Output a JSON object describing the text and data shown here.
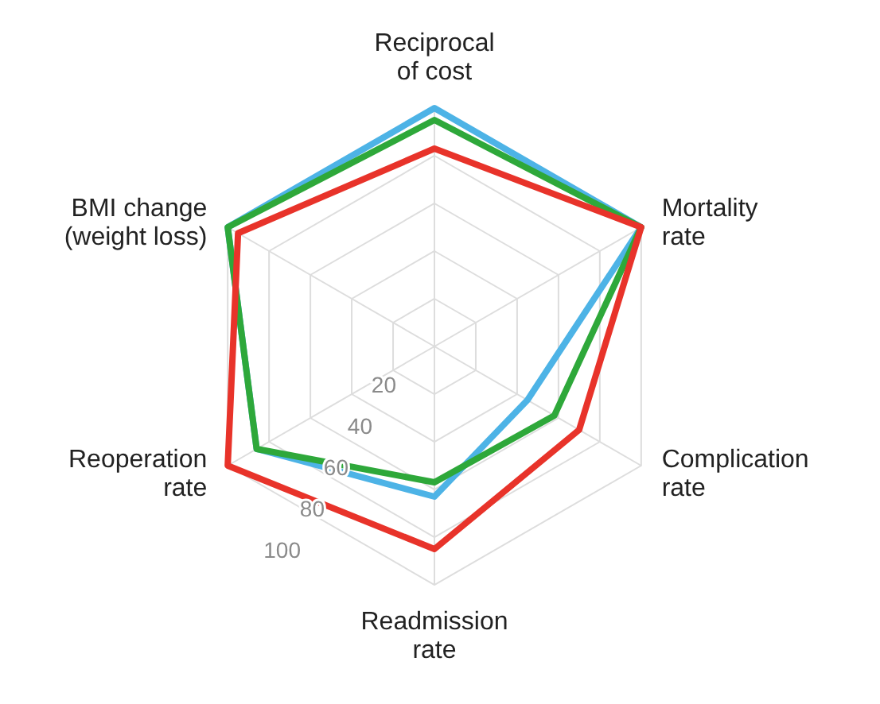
{
  "chart_data": {
    "type": "radar",
    "categories": [
      "Reciprocal of cost",
      "Mortality rate",
      "Complication rate",
      "Readmission rate",
      "Reoperation rate",
      "BMI change (weight loss)"
    ],
    "ylim": [
      0,
      100
    ],
    "yticks": [
      20,
      40,
      60,
      80,
      100
    ],
    "grid": true,
    "marker": "none",
    "series": [
      {
        "color": "#4db3e6",
        "values": [
          100,
          100,
          45,
          63,
          86,
          100
        ]
      },
      {
        "color": "#2ea83a",
        "values": [
          95,
          100,
          58,
          57,
          86,
          100
        ]
      },
      {
        "color": "#e8332a",
        "values": [
          83,
          100,
          70,
          85,
          100,
          95
        ]
      }
    ]
  }
}
